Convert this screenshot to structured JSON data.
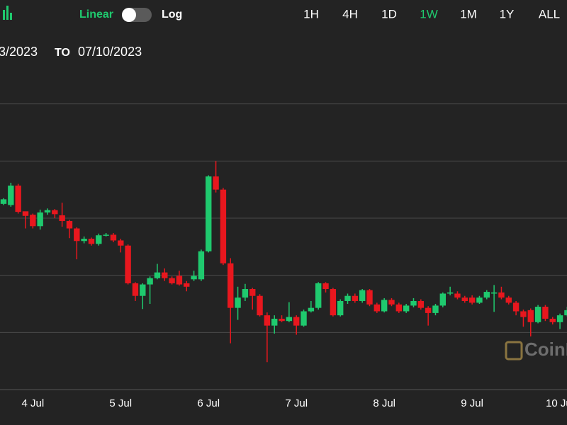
{
  "toolbar": {
    "scale_options": [
      "Linear",
      "Log"
    ],
    "active_scale_index": 0,
    "ranges": [
      "1H",
      "4H",
      "1D",
      "1W",
      "1M",
      "1Y",
      "ALL"
    ],
    "active_range_index": 3,
    "active_color": "#1fc96e"
  },
  "date_range": {
    "from": "3/2023",
    "separator": "TO",
    "to": "07/10/2023"
  },
  "watermark": "CoinDesk",
  "chart_data": {
    "type": "candlestick",
    "categories": [
      null,
      null,
      null,
      null,
      "4 Jul",
      null,
      null,
      null,
      null,
      null,
      null,
      null,
      null,
      null,
      null,
      null,
      "5 Jul",
      null,
      null,
      null,
      null,
      null,
      null,
      null,
      null,
      null,
      null,
      null,
      "6 Jul",
      null,
      null,
      null,
      null,
      null,
      null,
      null,
      null,
      null,
      null,
      null,
      "7 Jul",
      null,
      null,
      null,
      null,
      null,
      null,
      null,
      null,
      null,
      null,
      null,
      "8 Jul",
      null,
      null,
      null,
      null,
      null,
      null,
      null,
      null,
      null,
      null,
      null,
      "9 Jul",
      null,
      null,
      null,
      null,
      null,
      null,
      null,
      null,
      null,
      null,
      null,
      "10 Jul",
      null
    ],
    "open": [
      3.25,
      3.23,
      3.57,
      3.12,
      3.06,
      2.86,
      3.1,
      3.14,
      3.05,
      2.95,
      2.82,
      2.6,
      2.64,
      2.55,
      2.7,
      2.71,
      2.61,
      2.52,
      1.86,
      1.64,
      1.84,
      1.95,
      2.05,
      1.95,
      1.99,
      1.86,
      1.93,
      1.93,
      2.42,
      3.73,
      3.5,
      2.21,
      1.43,
      1.61,
      1.76,
      1.64,
      1.3,
      1.12,
      1.24,
      1.2,
      1.27,
      1.12,
      1.37,
      1.43,
      1.86,
      1.76,
      1.3,
      1.55,
      1.64,
      1.55,
      1.74,
      1.49,
      1.37,
      1.57,
      1.49,
      1.37,
      1.47,
      1.55,
      1.43,
      1.34,
      1.47,
      1.68,
      1.68,
      1.61,
      1.61,
      1.52,
      1.61,
      1.68,
      1.7,
      1.61,
      1.52,
      1.37,
      1.39,
      1.18,
      1.45,
      1.24,
      1.18,
      1.3
    ],
    "high": [
      3.35,
      3.62,
      3.6,
      3.1,
      3.08,
      3.15,
      3.17,
      3.16,
      3.27,
      2.97,
      2.84,
      2.68,
      2.66,
      2.73,
      2.74,
      2.74,
      2.64,
      2.54,
      1.88,
      1.86,
      1.98,
      2.2,
      2.12,
      1.98,
      2.08,
      1.9,
      2.08,
      2.45,
      3.75,
      4.0,
      3.53,
      2.3,
      1.8,
      1.85,
      1.78,
      1.67,
      1.35,
      1.3,
      1.3,
      1.53,
      1.3,
      1.4,
      1.55,
      1.88,
      1.88,
      1.78,
      1.58,
      1.68,
      1.68,
      1.76,
      1.76,
      1.52,
      1.6,
      1.6,
      1.52,
      1.5,
      1.6,
      1.58,
      1.46,
      1.5,
      1.7,
      1.8,
      1.72,
      1.64,
      1.65,
      1.64,
      1.74,
      1.83,
      1.8,
      1.64,
      1.55,
      1.4,
      1.42,
      1.48,
      1.48,
      1.27,
      1.33,
      1.45
    ],
    "low": [
      3.23,
      3.2,
      3.08,
      2.82,
      2.82,
      2.8,
      3.06,
      3.0,
      2.85,
      2.65,
      2.28,
      2.56,
      2.52,
      2.52,
      2.68,
      2.58,
      2.4,
      1.84,
      1.55,
      1.41,
      1.5,
      1.93,
      1.9,
      1.84,
      1.82,
      1.72,
      1.9,
      1.9,
      2.4,
      3.45,
      2.18,
      0.81,
      1.22,
      1.55,
      1.4,
      1.28,
      0.48,
      0.98,
      1.18,
      1.18,
      0.96,
      1.1,
      1.35,
      1.4,
      1.7,
      1.28,
      1.28,
      1.5,
      1.52,
      1.52,
      1.46,
      1.34,
      1.35,
      1.46,
      1.34,
      1.34,
      1.44,
      1.4,
      1.12,
      1.3,
      1.44,
      1.65,
      1.58,
      1.52,
      1.49,
      1.5,
      1.58,
      1.36,
      1.58,
      1.49,
      1.3,
      1.1,
      0.93,
      1.16,
      1.2,
      1.14,
      1.06,
      1.28
    ],
    "close": [
      3.33,
      3.57,
      3.11,
      3.04,
      2.86,
      3.1,
      3.14,
      3.07,
      2.95,
      2.82,
      2.6,
      2.64,
      2.55,
      2.7,
      2.71,
      2.61,
      2.52,
      1.86,
      1.64,
      1.84,
      1.95,
      2.05,
      1.95,
      1.86,
      1.84,
      1.8,
      1.99,
      2.42,
      3.73,
      3.5,
      2.21,
      1.43,
      1.61,
      1.76,
      1.64,
      1.3,
      1.12,
      1.24,
      1.2,
      1.27,
      1.12,
      1.37,
      1.43,
      1.86,
      1.76,
      1.3,
      1.55,
      1.64,
      1.55,
      1.74,
      1.49,
      1.37,
      1.57,
      1.49,
      1.37,
      1.47,
      1.55,
      1.43,
      1.34,
      1.47,
      1.68,
      1.7,
      1.61,
      1.55,
      1.52,
      1.61,
      1.71,
      1.7,
      1.61,
      1.52,
      1.37,
      1.27,
      1.18,
      1.45,
      1.24,
      1.18,
      1.3,
      1.39
    ],
    "up_color": "#1fc96e",
    "down_color": "#e8171e",
    "ylim": [
      0,
      6
    ],
    "yticks": [
      1,
      2,
      3,
      4,
      5
    ],
    "grid": true
  }
}
